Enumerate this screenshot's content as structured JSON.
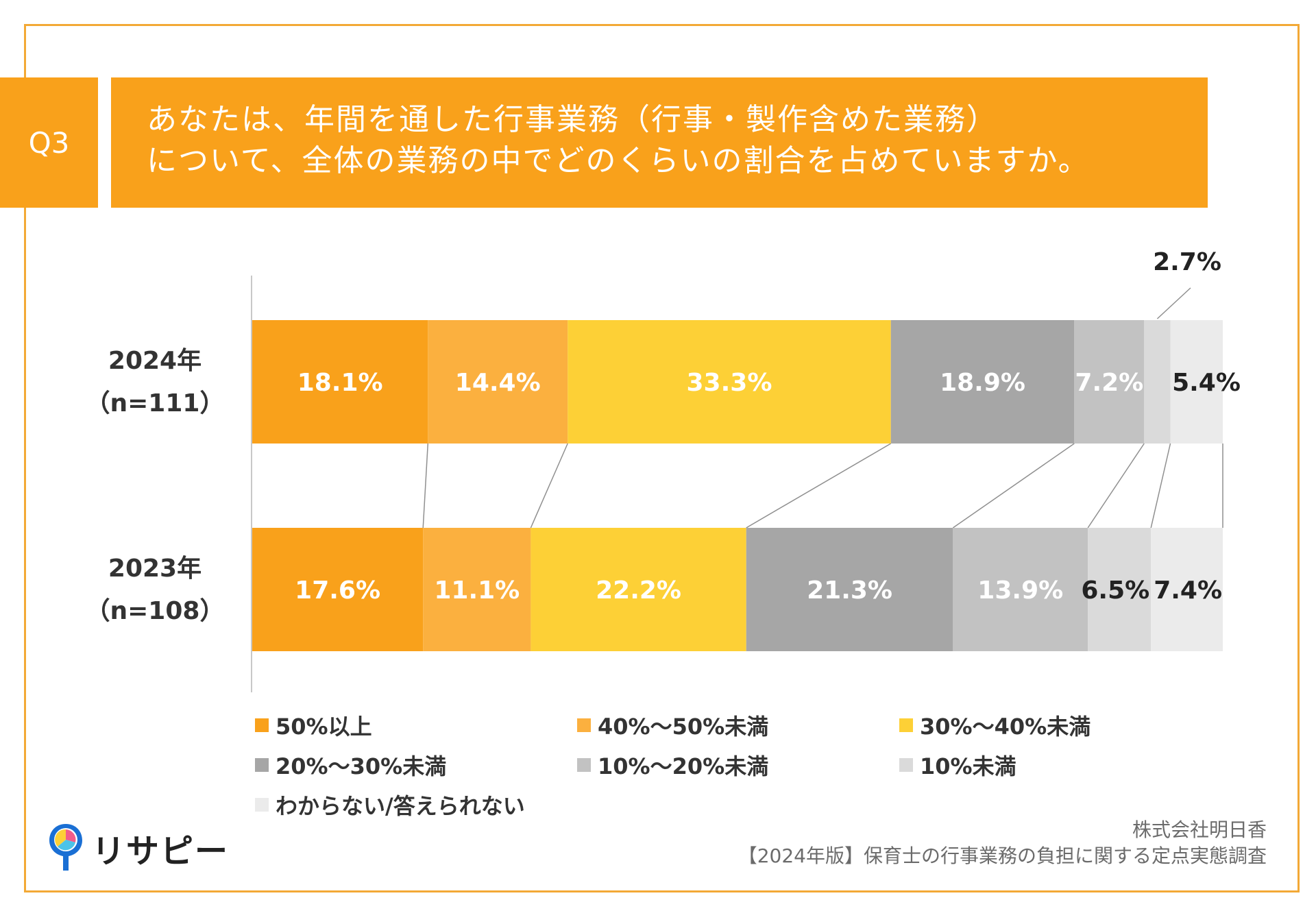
{
  "header": {
    "q_label": "Q3",
    "question_line1": "あなたは、年間を通した行事業務（行事・製作含めた業務）",
    "question_line2": "について、全体の業務の中でどのくらいの割合を占めていますか。"
  },
  "chart_data": {
    "type": "bar",
    "orientation": "horizontal",
    "stacked": true,
    "categories": [
      "2024年（n=111）",
      "2023年（n=108）"
    ],
    "category_lines": [
      [
        "2024年",
        "（n=111）"
      ],
      [
        "2023年",
        "（n=108）"
      ]
    ],
    "series": [
      {
        "name": "50%以上",
        "values": [
          18.1,
          17.6
        ],
        "labels": [
          "18.1%",
          "17.6%"
        ],
        "color": "#f9a11b",
        "label_color": [
          "#ffffff",
          "#ffffff"
        ]
      },
      {
        "name": "40%～50%未満",
        "values": [
          14.4,
          11.1
        ],
        "labels": [
          "14.4%",
          "11.1%"
        ],
        "color": "#fbb03f",
        "label_color": [
          "#ffffff",
          "#ffffff"
        ]
      },
      {
        "name": "30%～40%未満",
        "values": [
          33.3,
          22.2
        ],
        "labels": [
          "33.3%",
          "22.2%"
        ],
        "color": "#fdd036",
        "label_color": [
          "#ffffff",
          "#ffffff"
        ]
      },
      {
        "name": "20%～30%未満",
        "values": [
          18.9,
          21.3
        ],
        "labels": [
          "18.9%",
          "21.3%"
        ],
        "color": "#a6a6a6",
        "label_color": [
          "#ffffff",
          "#ffffff"
        ]
      },
      {
        "name": "10%～20%未満",
        "values": [
          7.2,
          13.9
        ],
        "labels": [
          "7.2%",
          "13.9%"
        ],
        "color": "#c2c2c2",
        "label_color": [
          "#ffffff",
          "#ffffff"
        ]
      },
      {
        "name": "10%未満",
        "values": [
          2.7,
          6.5
        ],
        "labels": [
          "2.7%",
          "6.5%"
        ],
        "color": "#dadada",
        "label_color": [
          "#222222",
          "#222222"
        ]
      },
      {
        "name": "わからない/答えられない",
        "values": [
          5.4,
          7.4
        ],
        "labels": [
          "5.4%",
          "7.4%"
        ],
        "color": "#ebebeb",
        "label_color": [
          "#222222",
          "#222222"
        ]
      }
    ],
    "xlim": [
      0,
      100
    ],
    "legend_position": "bottom"
  },
  "logo": {
    "text": "リサピー"
  },
  "source": {
    "company": "株式会社明日香",
    "survey": "【2024年版】保育士の行事業務の負担に関する定点実態調査"
  },
  "colors": {
    "accent": "#f9a11b",
    "frame": "#f3a936"
  }
}
